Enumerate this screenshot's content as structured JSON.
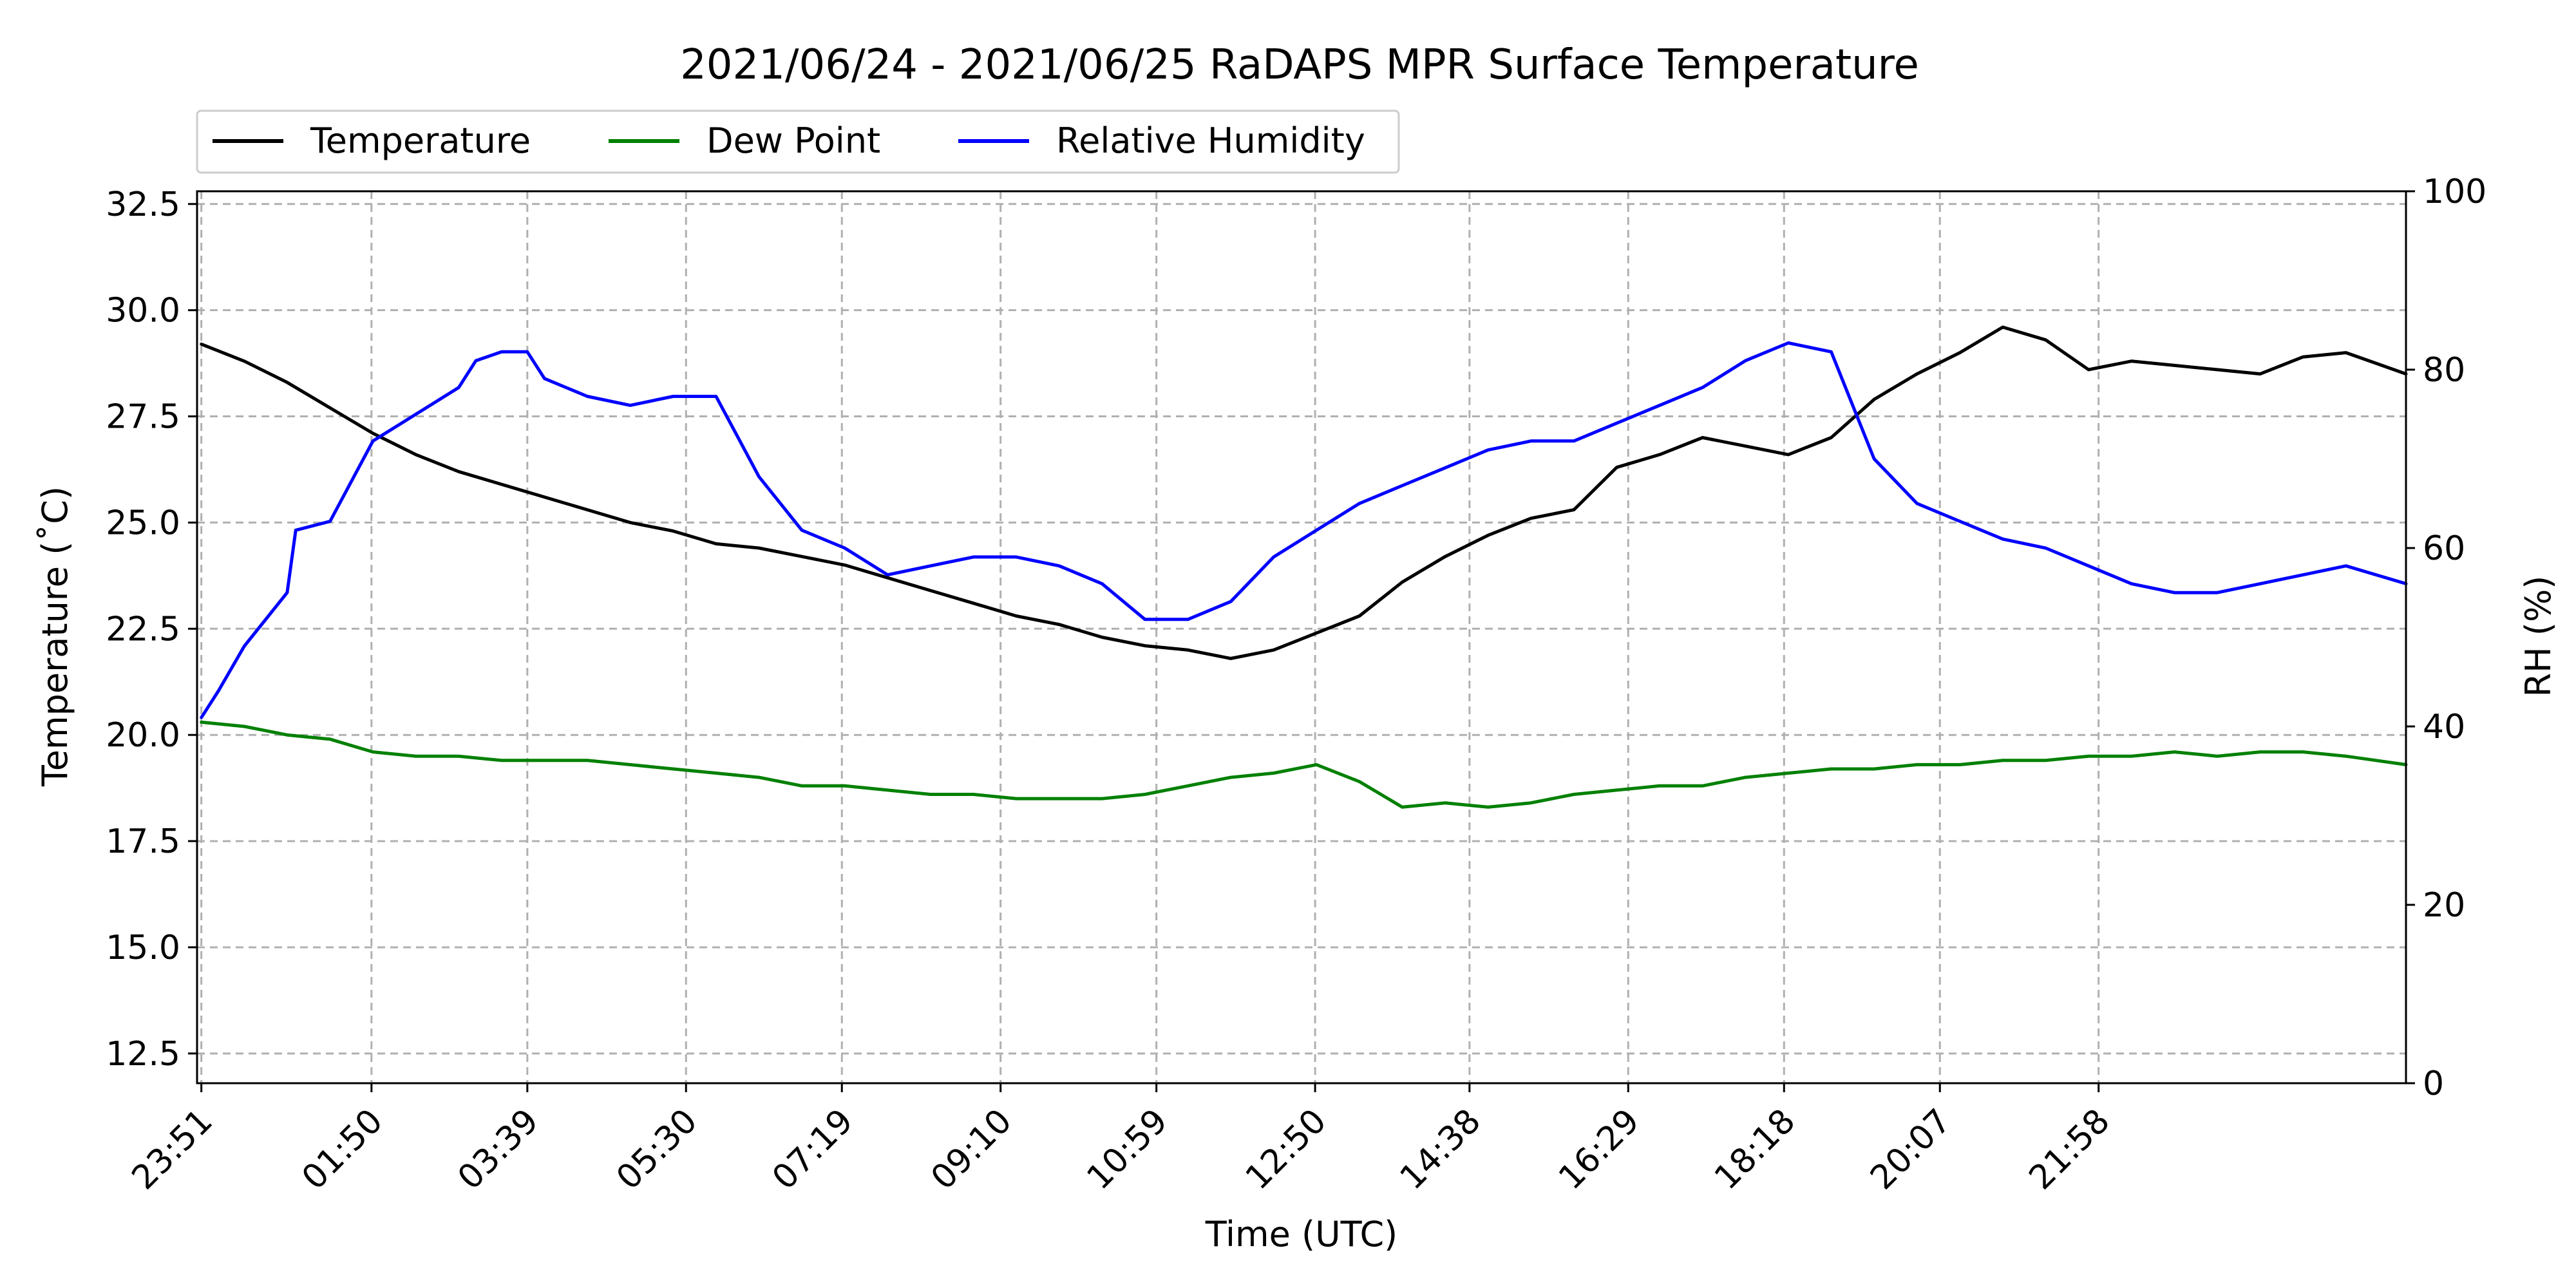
{
  "chart_data": {
    "type": "line",
    "title": "2021/06/24 - 2021/06/25 RaDAPS MPR Surface Temperature",
    "xlabel": "Time (UTC)",
    "ylabel": "Temperature ($^\\circ$C)",
    "ylabel_display": "Temperature (˚C)",
    "ylabel_right": "RH (%)",
    "x_unit": "hours since 23:51 UTC 2021/06/24",
    "xlim": [
      -0.05,
      25.7
    ],
    "ylim": [
      11.8,
      32.8
    ],
    "ylim_right": [
      0,
      100
    ],
    "grid": true,
    "legend_position": "top-left, above plot",
    "x_ticks": [
      {
        "x": 0.0,
        "label": "23:51"
      },
      {
        "x": 1.9833,
        "label": "01:50"
      },
      {
        "x": 3.8,
        "label": "03:39"
      },
      {
        "x": 5.65,
        "label": "05:30"
      },
      {
        "x": 7.4667,
        "label": "07:19"
      },
      {
        "x": 9.3167,
        "label": "09:10"
      },
      {
        "x": 11.1333,
        "label": "10:59"
      },
      {
        "x": 12.9833,
        "label": "12:50"
      },
      {
        "x": 14.7833,
        "label": "14:38"
      },
      {
        "x": 16.6333,
        "label": "16:29"
      },
      {
        "x": 18.45,
        "label": "18:18"
      },
      {
        "x": 20.2667,
        "label": "20:07"
      },
      {
        "x": 22.1167,
        "label": "21:58"
      }
    ],
    "y_ticks": [
      {
        "y": 12.5,
        "label": "12.5"
      },
      {
        "y": 15.0,
        "label": "15.0"
      },
      {
        "y": 17.5,
        "label": "17.5"
      },
      {
        "y": 20.0,
        "label": "20.0"
      },
      {
        "y": 22.5,
        "label": "22.5"
      },
      {
        "y": 25.0,
        "label": "25.0"
      },
      {
        "y": 27.5,
        "label": "27.5"
      },
      {
        "y": 30.0,
        "label": "30.0"
      },
      {
        "y": 32.5,
        "label": "32.5"
      }
    ],
    "y_ticks_right": [
      {
        "y": 0,
        "label": "0"
      },
      {
        "y": 20,
        "label": "20"
      },
      {
        "y": 40,
        "label": "40"
      },
      {
        "y": 60,
        "label": "60"
      },
      {
        "y": 80,
        "label": "80"
      },
      {
        "y": 100,
        "label": "100"
      }
    ],
    "series": [
      {
        "name": "Temperature",
        "color": "#000000",
        "axis": "left",
        "x": [
          0,
          0.5,
          1.0,
          1.5,
          2.0,
          2.5,
          3.0,
          3.5,
          4.0,
          4.5,
          5.0,
          5.5,
          6.0,
          6.5,
          7.0,
          7.5,
          8.0,
          8.5,
          9.0,
          9.5,
          10.0,
          10.5,
          11.0,
          11.5,
          12.0,
          12.5,
          13.0,
          13.5,
          14.0,
          14.5,
          15.0,
          15.5,
          16.0,
          16.5,
          17.0,
          17.5,
          18.0,
          18.5,
          19.0,
          19.5,
          20.0,
          20.5,
          21.0,
          21.5,
          22.0,
          22.5,
          23.0,
          23.5,
          24.0,
          24.5,
          25.0,
          25.7
        ],
        "y": [
          29.2,
          28.8,
          28.3,
          27.7,
          27.1,
          26.6,
          26.2,
          25.9,
          25.6,
          25.3,
          25.0,
          24.8,
          24.5,
          24.4,
          24.2,
          24.0,
          23.7,
          23.4,
          23.1,
          22.8,
          22.6,
          22.3,
          22.1,
          22.0,
          21.8,
          22.0,
          22.4,
          22.8,
          23.6,
          24.2,
          24.7,
          25.1,
          25.3,
          26.3,
          26.6,
          27.0,
          26.8,
          26.6,
          27.0,
          27.9,
          28.5,
          29.0,
          29.6,
          29.3,
          28.6,
          28.8,
          28.7,
          28.6,
          28.5,
          28.9,
          29.0,
          28.5
        ]
      },
      {
        "name": "Dew Point",
        "color": "#008000",
        "axis": "left",
        "x": [
          0,
          0.5,
          1.0,
          1.5,
          2.0,
          2.5,
          3.0,
          3.5,
          4.0,
          4.5,
          5.0,
          5.5,
          6.0,
          6.5,
          7.0,
          7.5,
          8.0,
          8.5,
          9.0,
          9.5,
          10.0,
          10.5,
          11.0,
          11.5,
          12.0,
          12.5,
          13.0,
          13.5,
          14.0,
          14.5,
          15.0,
          15.5,
          16.0,
          16.5,
          17.0,
          17.5,
          18.0,
          18.5,
          19.0,
          19.5,
          20.0,
          20.5,
          21.0,
          21.5,
          22.0,
          22.5,
          23.0,
          23.5,
          24.0,
          24.5,
          25.0,
          25.7
        ],
        "y": [
          20.3,
          20.2,
          20.0,
          19.9,
          19.6,
          19.5,
          19.5,
          19.4,
          19.4,
          19.4,
          19.3,
          19.2,
          19.1,
          19.0,
          18.8,
          18.8,
          18.7,
          18.6,
          18.6,
          18.5,
          18.5,
          18.5,
          18.6,
          18.8,
          19.0,
          19.1,
          19.3,
          18.9,
          18.3,
          18.4,
          18.3,
          18.4,
          18.6,
          18.7,
          18.8,
          18.8,
          19.0,
          19.1,
          19.2,
          19.2,
          19.3,
          19.3,
          19.4,
          19.4,
          19.5,
          19.5,
          19.6,
          19.5,
          19.6,
          19.6,
          19.5,
          19.3
        ]
      },
      {
        "name": "Relative Humidity",
        "color": "#0000ff",
        "axis": "right",
        "x": [
          0,
          0.2,
          0.5,
          1.0,
          1.1,
          1.5,
          2.0,
          2.5,
          3.0,
          3.2,
          3.5,
          3.8,
          4.0,
          4.5,
          5.0,
          5.5,
          6.0,
          6.5,
          7.0,
          7.5,
          8.0,
          8.5,
          9.0,
          9.5,
          10.0,
          10.5,
          11.0,
          11.5,
          12.0,
          12.5,
          13.0,
          13.5,
          14.0,
          14.5,
          15.0,
          15.5,
          16.0,
          16.5,
          17.0,
          17.5,
          18.0,
          18.5,
          19.0,
          19.5,
          20.0,
          20.5,
          21.0,
          21.5,
          22.0,
          22.5,
          23.0,
          23.5,
          24.0,
          24.5,
          25.0,
          25.7
        ],
        "y": [
          41,
          44,
          49,
          55,
          62,
          63,
          72,
          75,
          78,
          81,
          82,
          82,
          79,
          77,
          76,
          77,
          77,
          68,
          62,
          60,
          57,
          58,
          59,
          59,
          58,
          56,
          52,
          52,
          54,
          59,
          62,
          65,
          67,
          69,
          71,
          72,
          72,
          74,
          76,
          78,
          81,
          83,
          82,
          70,
          65,
          63,
          61,
          60,
          58,
          56,
          55,
          55,
          56,
          57,
          58,
          56
        ]
      }
    ]
  }
}
